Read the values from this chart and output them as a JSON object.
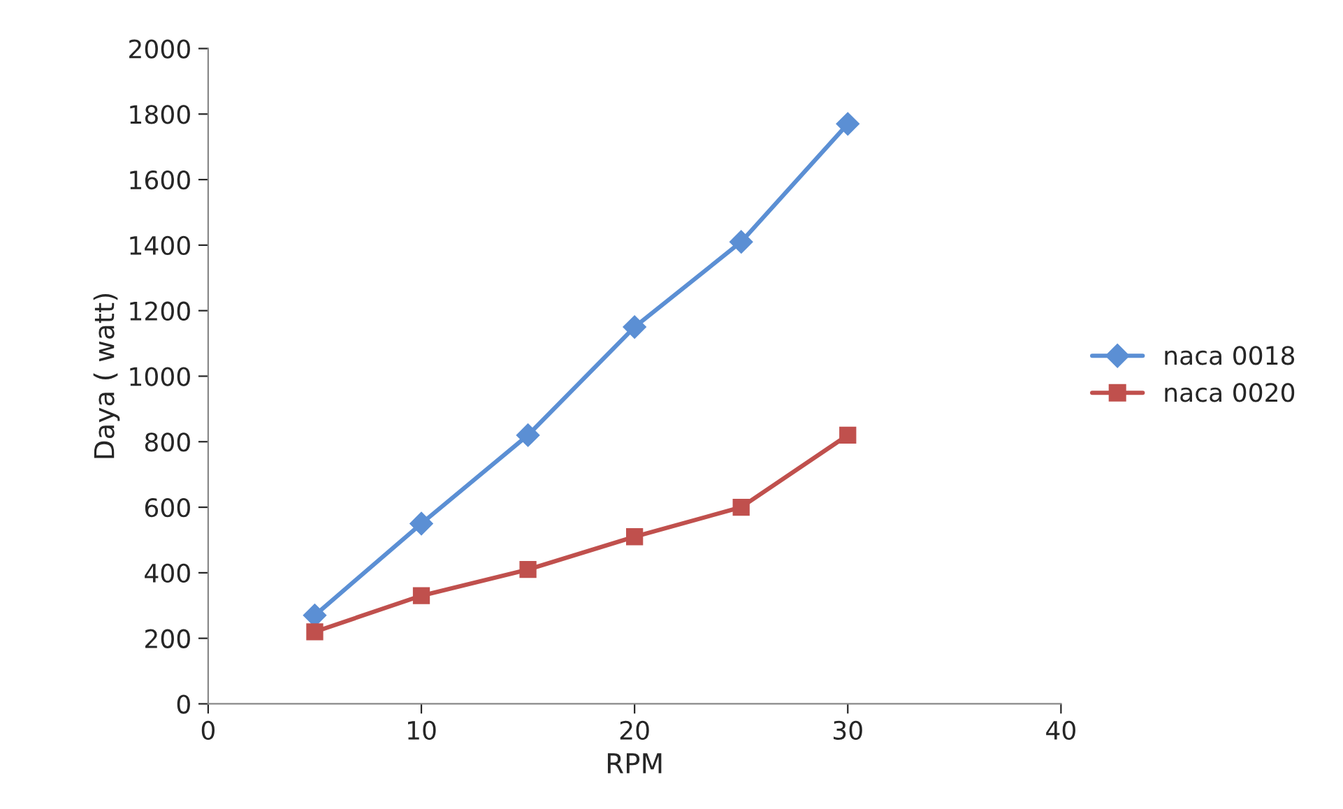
{
  "chart_data": {
    "type": "line",
    "xlabel": "RPM",
    "ylabel": "Daya ( watt)",
    "x": [
      5,
      10,
      15,
      20,
      25,
      30
    ],
    "series": [
      {
        "name": "naca 0018",
        "color": "#5b8fd4",
        "marker": "diamond",
        "values": [
          270,
          550,
          820,
          1150,
          1410,
          1770
        ]
      },
      {
        "name": "naca 0020",
        "color": "#c0504d",
        "marker": "square",
        "values": [
          220,
          330,
          410,
          510,
          600,
          820
        ]
      }
    ],
    "xlim": [
      0,
      40
    ],
    "xticks": [
      0,
      10,
      20,
      30,
      40
    ],
    "ylim": [
      0,
      2000
    ],
    "yticks": [
      0,
      200,
      400,
      600,
      800,
      1000,
      1200,
      1400,
      1600,
      1800,
      2000
    ],
    "grid": false,
    "legend": "right",
    "line_style": "solid"
  }
}
